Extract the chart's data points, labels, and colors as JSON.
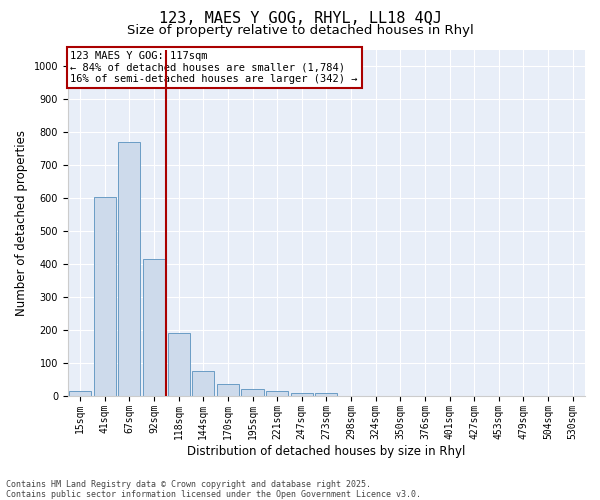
{
  "title": "123, MAES Y GOG, RHYL, LL18 4QJ",
  "subtitle": "Size of property relative to detached houses in Rhyl",
  "xlabel": "Distribution of detached houses by size in Rhyl",
  "ylabel": "Number of detached properties",
  "categories": [
    "15sqm",
    "41sqm",
    "67sqm",
    "92sqm",
    "118sqm",
    "144sqm",
    "170sqm",
    "195sqm",
    "221sqm",
    "247sqm",
    "273sqm",
    "298sqm",
    "324sqm",
    "350sqm",
    "376sqm",
    "401sqm",
    "427sqm",
    "453sqm",
    "479sqm",
    "504sqm",
    "530sqm"
  ],
  "values": [
    15,
    605,
    770,
    415,
    190,
    75,
    38,
    20,
    15,
    10,
    10,
    0,
    0,
    0,
    0,
    0,
    0,
    0,
    0,
    0,
    0
  ],
  "bar_color": "#cddaeb",
  "bar_edge_color": "#6a9cc5",
  "vline_x": 3.5,
  "vline_color": "#aa0000",
  "annotation_text": "123 MAES Y GOG: 117sqm\n← 84% of detached houses are smaller (1,784)\n16% of semi-detached houses are larger (342) →",
  "annotation_box_edgecolor": "#aa0000",
  "annotation_box_facecolor": "white",
  "ylim": [
    0,
    1050
  ],
  "yticks": [
    0,
    100,
    200,
    300,
    400,
    500,
    600,
    700,
    800,
    900,
    1000
  ],
  "bg_color": "#e8eef8",
  "footer_line1": "Contains HM Land Registry data © Crown copyright and database right 2025.",
  "footer_line2": "Contains public sector information licensed under the Open Government Licence v3.0.",
  "title_fontsize": 11,
  "subtitle_fontsize": 9.5,
  "label_fontsize": 8.5,
  "tick_fontsize": 7,
  "annot_fontsize": 7.5
}
